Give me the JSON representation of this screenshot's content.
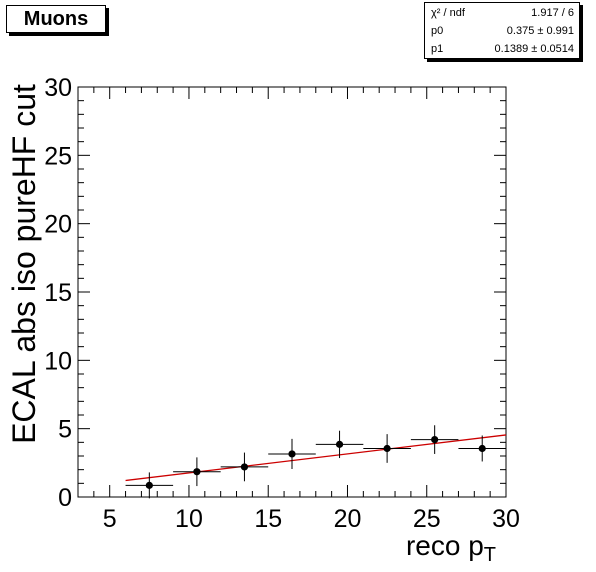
{
  "title": "Muons",
  "stats": [
    {
      "label": "χ² / ndf",
      "value": "1.917 / 6"
    },
    {
      "label": "p0",
      "value": "0.375 ± 0.991"
    },
    {
      "label": "p1",
      "value": "0.1389 ± 0.0514"
    }
  ],
  "chart_data": {
    "type": "scatter",
    "title": "Muons",
    "xlabel": "reco p",
    "xlabel_sub": "T",
    "ylabel": "ECAL abs iso pureHF cut",
    "xlim": [
      3,
      30
    ],
    "ylim": [
      0,
      30
    ],
    "xticks": [
      "5",
      "10",
      "15",
      "20",
      "25",
      "30"
    ],
    "yticks": [
      "0",
      "5",
      "10",
      "15",
      "20",
      "25",
      "30"
    ],
    "series": [
      {
        "x": [
          7.5,
          10.5,
          13.5,
          16.5,
          19.5,
          22.5,
          25.5,
          28.5
        ],
        "y": [
          0.85,
          1.85,
          2.2,
          3.15,
          3.85,
          3.55,
          4.2,
          3.55
        ],
        "xerr": [
          1.5,
          1.5,
          1.5,
          1.5,
          1.5,
          1.5,
          1.5,
          1.5
        ],
        "yerr": [
          0.95,
          1.05,
          1.05,
          1.1,
          1.0,
          1.05,
          1.05,
          0.95
        ]
      }
    ],
    "fit": {
      "p0": 0.375,
      "p1": 0.1389,
      "x_range": [
        6,
        30
      ],
      "color": "#cc0000"
    },
    "marker_color": "#000000",
    "grid": false
  }
}
